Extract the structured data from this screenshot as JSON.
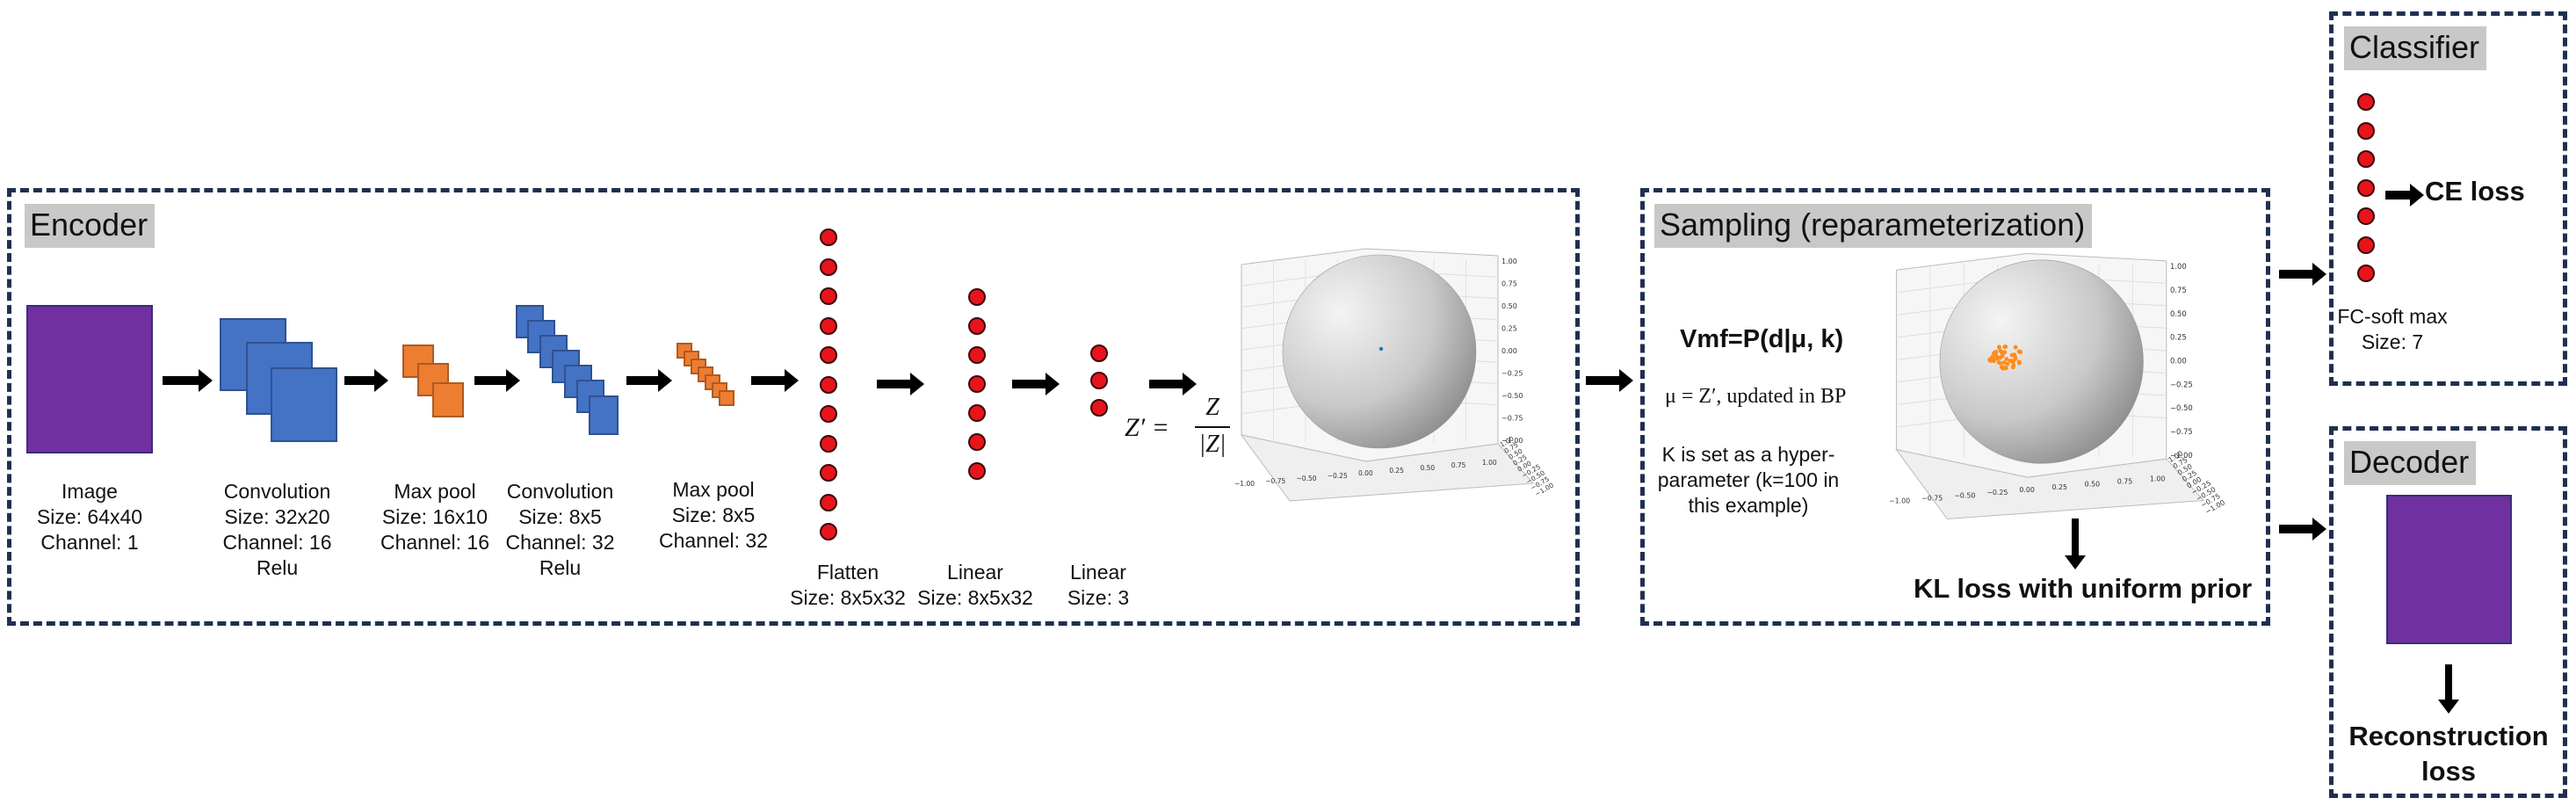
{
  "encoder": {
    "title": "Encoder",
    "image": {
      "l1": "Image",
      "l2": "Size: 64x40",
      "l3": "Channel: 1"
    },
    "conv1": {
      "l1": "Convolution",
      "l2": "Size: 32x20",
      "l3": "Channel: 16",
      "l4": "Relu"
    },
    "pool1": {
      "l1": "Max pool",
      "l2": "Size: 16x10",
      "l3": "Channel: 16"
    },
    "conv2": {
      "l1": "Convolution",
      "l2": "Size: 8x5",
      "l3": "Channel: 32",
      "l4": "Relu"
    },
    "pool2": {
      "l1": "Max pool",
      "l2": "Size: 8x5",
      "l3": "Channel: 32"
    },
    "flatten": {
      "l1": "Flatten",
      "l2": "Size: 8x5x32"
    },
    "linear1": {
      "l1": "Linear",
      "l2": "Size: 8x5x32"
    },
    "linear2": {
      "l1": "Linear",
      "l2": "Size: 3"
    },
    "formula": {
      "lhs": "Z′ =",
      "num": "Z",
      "den": "|Z|"
    }
  },
  "sampling": {
    "title": "Sampling (reparameterization)",
    "vmf": "Vmf=P(d|μ, k)",
    "mu_line": "μ = Z′, updated in BP",
    "k_l1": "K is set as a hyper-",
    "k_l2": "parameter (k=100 in",
    "k_l3": "this example)",
    "kl_loss": "KL loss with uniform prior"
  },
  "classifier": {
    "title": "Classifier",
    "ce_loss": "CE loss",
    "l1": "FC-soft max",
    "l2": "Size: 7"
  },
  "decoder": {
    "title": "Decoder",
    "loss_l1": "Reconstruction",
    "loss_l2": "loss"
  },
  "sphere_axes": {
    "x_ticks": [
      "−1.00",
      "−0.75",
      "−0.50",
      "−0.25",
      "0.00",
      "0.25",
      "0.50",
      "0.75",
      "1.00"
    ],
    "z_ticks": [
      "1.00",
      "0.75",
      "0.50",
      "0.25",
      "0.00",
      "−0.25",
      "−0.50",
      "−0.75",
      "−1.00"
    ],
    "y_ticks": [
      "1.00",
      "0.75",
      "0.50",
      "0.25",
      "0.00",
      "−0.25",
      "−0.50",
      "−0.75",
      "−1.00"
    ]
  },
  "colors": {
    "box_border": "#1f3050",
    "conv": "#4472c4",
    "pool": "#ed7d31",
    "image": "#7030a0",
    "neuron": "#e8141c",
    "points": "#ff8c1a",
    "center_point": "#1f77b4"
  },
  "sample_points": {
    "count": 50,
    "center": [
      0.02,
      -0.05
    ],
    "spread": 0.12
  }
}
